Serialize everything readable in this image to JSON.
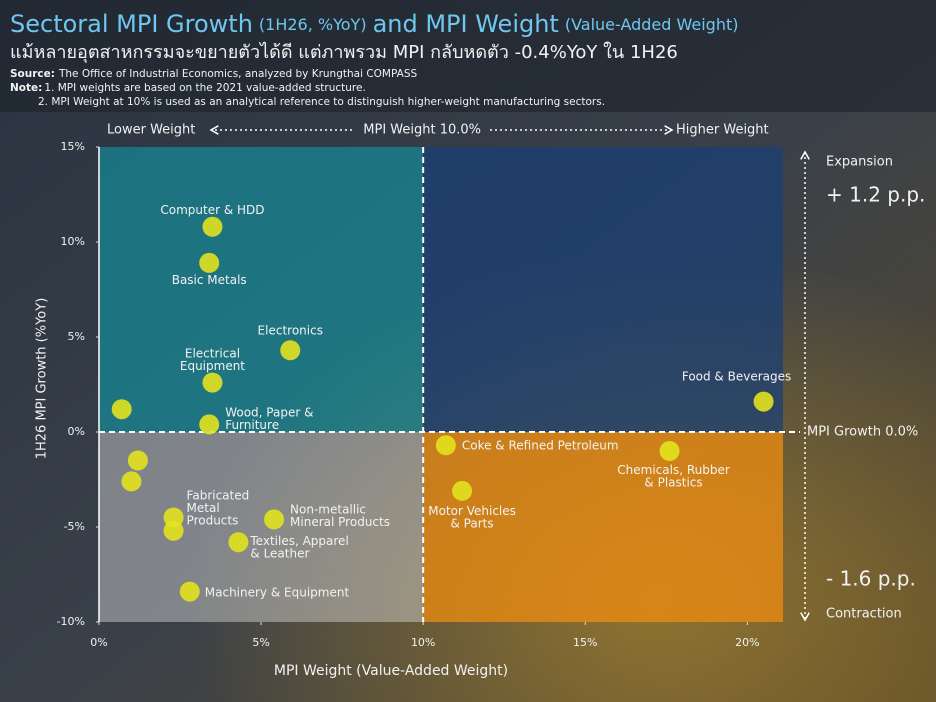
{
  "chart_data": {
    "type": "scatter",
    "title": {
      "main1": "Sectoral MPI Growth",
      "paren1": "(1H26, %YoY)",
      "main2": "and MPI Weight",
      "paren2": "(Value-Added Weight)"
    },
    "subtitle": "แม้หลายอุตสาหกรรมจะขยายตัวได้ดี แต่ภาพรวม MPI กลับหดตัว -0.4%YoY ใน 1H26",
    "source": {
      "label": "Source:",
      "text": "The Office of Industrial Economics, analyzed by Krungthai COMPASS"
    },
    "notes": {
      "label": "Note:",
      "items": [
        "1. MPI weights are based on the 2021 value-added structure.",
        "2. MPI Weight at 10% is used as an analytical reference to distinguish higher-weight manufacturing sectors."
      ]
    },
    "x_label": "MPI Weight (Value-Added Weight)",
    "y_label": "1H26 MPI Growth (%YoY)",
    "xlim": [
      0,
      21.1
    ],
    "ylim": [
      -10,
      15
    ],
    "xticks": [
      {
        "value": 0,
        "label": "0%"
      },
      {
        "value": 5,
        "label": "5%"
      },
      {
        "value": 10,
        "label": "10%"
      },
      {
        "value": 15,
        "label": "15%"
      },
      {
        "value": 20,
        "label": "20%"
      }
    ],
    "yticks": [
      {
        "value": -10,
        "label": "-10%"
      },
      {
        "value": -5,
        "label": "-5%"
      },
      {
        "value": 0,
        "label": "0%"
      },
      {
        "value": 5,
        "label": "5%"
      },
      {
        "value": 10,
        "label": "10%"
      },
      {
        "value": 15,
        "label": "15%"
      }
    ],
    "x_ref": {
      "value": 10,
      "label": "MPI Weight 10.0%"
    },
    "y_ref": {
      "value": 0,
      "label": "MPI Growth 0.0%"
    },
    "weight_labels": {
      "low": "Lower Weight",
      "high": "Higher Weight"
    },
    "growth_labels": {
      "up": "Expansion",
      "up_value": "+ 1.2 p.p.",
      "down_value": "- 1.6 p.p.",
      "down": "Contraction"
    },
    "color": "#e2e21e",
    "x": [
      3.5,
      3.4,
      5.9,
      3.5,
      0.7,
      3.4,
      20.5,
      10.7,
      17.6,
      1.2,
      1.0,
      11.2,
      2.3,
      2.3,
      5.4,
      4.3,
      2.8
    ],
    "values": [
      10.8,
      8.9,
      4.3,
      2.6,
      1.2,
      0.4,
      1.6,
      -0.7,
      -1.0,
      -1.5,
      -2.6,
      -3.1,
      -4.5,
      -5.2,
      -4.6,
      -5.8,
      -8.4
    ],
    "labels": [
      "Computer & HDD",
      "Basic Metals",
      "Electronics",
      "Electrical\nEquipment",
      null,
      "Wood, Paper &\nFurniture",
      "Food & Beverages",
      "Coke & Refined Petroleum",
      "Chemicals, Rubber\n& Plastics",
      null,
      null,
      "Motor Vehicles\n& Parts",
      "Fabricated\nMetal\nProducts",
      null,
      "Non-metallic\nMineral Products",
      "Textiles, Apparel\n& Leather",
      "Machinery & Equipment"
    ]
  }
}
